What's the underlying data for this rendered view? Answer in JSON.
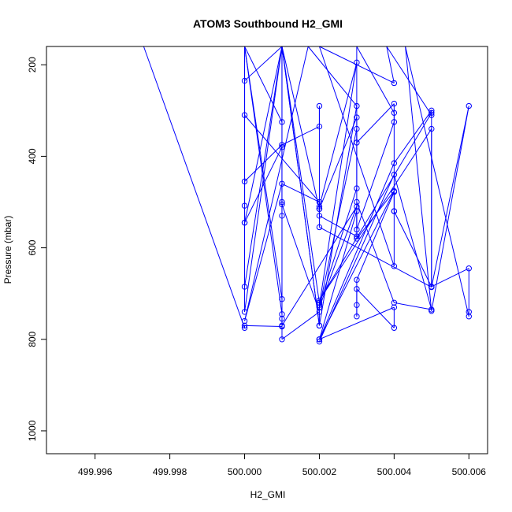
{
  "chart_data": {
    "type": "line",
    "title": "ATOM3 Southbound H2_GMI",
    "xlabel": "H2_GMI",
    "ylabel": "Pressure (mbar)",
    "xlim": [
      499.9947,
      500.0065
    ],
    "ylim": [
      1050,
      160
    ],
    "y_reversed": true,
    "grid": false,
    "series_color": "#0000ff",
    "marker": "open-circle",
    "x_ticks": [
      "499.996",
      "499.998",
      "500.000",
      "500.002",
      "500.004",
      "500.006"
    ],
    "x_tick_values": [
      499.996,
      499.998,
      500.0,
      500.002,
      500.004,
      500.006
    ],
    "y_ticks": [
      "200",
      "400",
      "600",
      "800",
      "1000"
    ],
    "y_tick_values": [
      200,
      400,
      600,
      800,
      1000
    ],
    "series": [
      {
        "points": [
          [
            499.9973,
            160
          ],
          [
            500.0,
            775
          ],
          [
            500.0,
            770
          ],
          [
            500.001,
            772
          ],
          [
            500.001,
            160
          ],
          [
            500.0,
            740
          ],
          [
            500.0,
            160
          ],
          [
            500.001,
            745
          ],
          [
            500.001,
            160
          ],
          [
            500.0,
            685
          ],
          [
            500.0,
            160
          ],
          [
            500.001,
            712
          ],
          [
            500.001,
            160
          ],
          [
            500.002,
            770
          ],
          [
            500.001,
            160
          ],
          [
            500.002,
            720
          ],
          [
            500.002,
            770
          ],
          [
            500.003,
            290
          ],
          [
            500.0017,
            160
          ],
          [
            500.0,
            760
          ],
          [
            500.001,
            460
          ],
          [
            500.002,
            500
          ],
          [
            500.0,
            310
          ],
          [
            500.0,
            235
          ],
          [
            500.001,
            160
          ],
          [
            500.0,
            545
          ],
          [
            500.0,
            160
          ],
          [
            500.001,
            325
          ],
          [
            500.001,
            500
          ],
          [
            500.001,
            530
          ],
          [
            500.001,
            160
          ],
          [
            500.002,
            515
          ],
          [
            500.002,
            510
          ],
          [
            500.003,
            195
          ],
          [
            500.002,
            725
          ],
          [
            500.003,
            470
          ],
          [
            500.003,
            160
          ],
          [
            500.004,
            305
          ],
          [
            500.004,
            520
          ],
          [
            500.004,
            640
          ],
          [
            500.002,
            160
          ],
          [
            500.004,
            240
          ],
          [
            500.0038,
            160
          ],
          [
            500.005,
            310
          ],
          [
            500.005,
            300
          ],
          [
            500.004,
            415
          ],
          [
            500.002,
            800
          ],
          [
            500.004,
            730
          ],
          [
            500.004,
            775
          ],
          [
            500.003,
            690
          ],
          [
            500.003,
            725
          ],
          [
            500.003,
            750
          ],
          [
            500.003,
            670
          ],
          [
            500.004,
            478
          ],
          [
            500.004,
            520
          ],
          [
            500.005,
            685
          ],
          [
            500.005,
            305
          ],
          [
            500.002,
            715
          ],
          [
            500.005,
            340
          ],
          [
            500.005,
            685
          ],
          [
            500.006,
            645
          ],
          [
            500.006,
            740
          ],
          [
            500.006,
            750
          ],
          [
            500.0043,
            160
          ],
          [
            500.005,
            738
          ],
          [
            500.006,
            290
          ],
          [
            500.005,
            686
          ],
          [
            500.002,
            555
          ],
          [
            500.002,
            290
          ],
          [
            500.002,
            335
          ],
          [
            500.001,
            375
          ],
          [
            500.0,
            455
          ],
          [
            500.0,
            508
          ],
          [
            500.0,
            545
          ],
          [
            500.001,
            380
          ],
          [
            500.001,
            505
          ],
          [
            500.002,
            740
          ],
          [
            500.001,
            800
          ],
          [
            500.001,
            755
          ],
          [
            500.001,
            770
          ],
          [
            500.003,
            510
          ],
          [
            500.002,
            730
          ],
          [
            500.003,
            340
          ],
          [
            500.003,
            370
          ],
          [
            500.004,
            285
          ],
          [
            500.004,
            325
          ],
          [
            500.003,
            560
          ],
          [
            500.003,
            315
          ],
          [
            500.002,
            515
          ],
          [
            500.002,
            530
          ],
          [
            500.003,
            575
          ],
          [
            500.003,
            520
          ],
          [
            500.002,
            800
          ],
          [
            500.004,
            476
          ],
          [
            500.003,
            580
          ],
          [
            500.003,
            500
          ],
          [
            500.004,
            720
          ],
          [
            500.005,
            735
          ],
          [
            500.004,
            440
          ],
          [
            500.002,
            805
          ]
        ]
      }
    ]
  }
}
